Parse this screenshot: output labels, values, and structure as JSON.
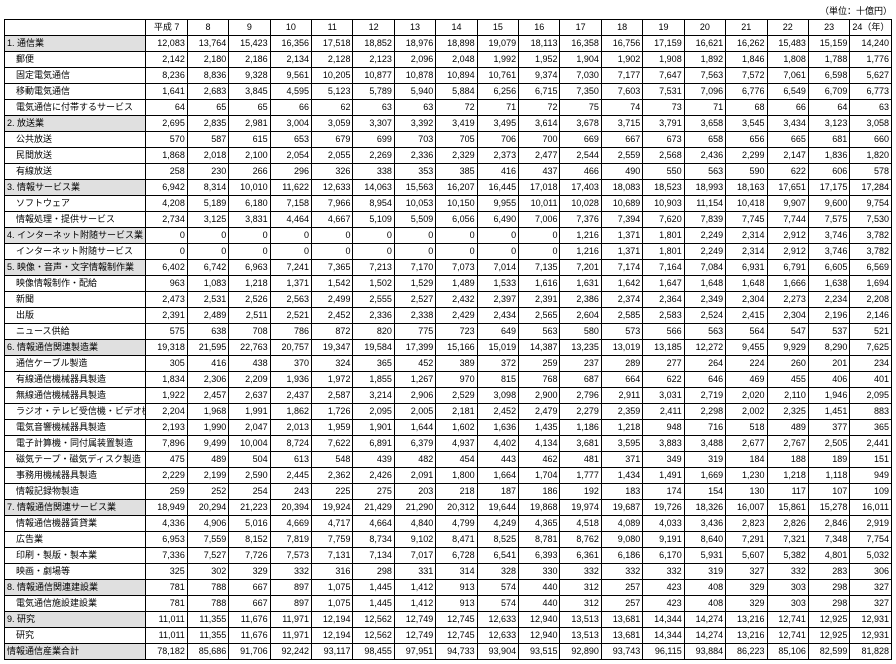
{
  "unit_label": "（単位：十億円）",
  "years": [
    "平成 7",
    "8",
    "9",
    "10",
    "11",
    "12",
    "13",
    "14",
    "15",
    "16",
    "17",
    "18",
    "19",
    "20",
    "21",
    "22",
    "23",
    "24（年）"
  ],
  "rows": [
    {
      "label": "1. 通信業",
      "section": true,
      "vals": [
        12083,
        13764,
        15423,
        16356,
        17518,
        18852,
        18976,
        18898,
        19079,
        18113,
        16358,
        16756,
        17159,
        16621,
        16262,
        15483,
        15159,
        14240
      ]
    },
    {
      "label": "　郵便",
      "vals": [
        2142,
        2180,
        2186,
        2134,
        2128,
        2123,
        2096,
        2048,
        1992,
        1952,
        1904,
        1902,
        1908,
        1892,
        1846,
        1808,
        1788,
        1776
      ]
    },
    {
      "label": "　固定電気通信",
      "vals": [
        8236,
        8836,
        9328,
        9561,
        10205,
        10877,
        10878,
        10894,
        10761,
        9374,
        7030,
        7177,
        7647,
        7563,
        7572,
        7061,
        6598,
        5627
      ]
    },
    {
      "label": "　移動電気通信",
      "vals": [
        1641,
        2683,
        3845,
        4595,
        5123,
        5789,
        5940,
        5884,
        6256,
        6715,
        7350,
        7603,
        7531,
        7096,
        6776,
        6549,
        6709,
        6773
      ]
    },
    {
      "label": "　電気通信に付帯するサービス",
      "vals": [
        64,
        65,
        65,
        66,
        62,
        63,
        63,
        72,
        71,
        72,
        75,
        74,
        73,
        71,
        68,
        66,
        64,
        63
      ]
    },
    {
      "label": "2. 放送業",
      "section": true,
      "vals": [
        2695,
        2835,
        2981,
        3004,
        3059,
        3307,
        3392,
        3419,
        3495,
        3614,
        3678,
        3715,
        3791,
        3658,
        3545,
        3434,
        3123,
        3058
      ]
    },
    {
      "label": "　公共放送",
      "vals": [
        570,
        587,
        615,
        653,
        679,
        699,
        703,
        705,
        706,
        700,
        669,
        667,
        673,
        658,
        656,
        665,
        681,
        660
      ]
    },
    {
      "label": "　民間放送",
      "vals": [
        1868,
        2018,
        2100,
        2054,
        2055,
        2269,
        2336,
        2329,
        2373,
        2477,
        2544,
        2559,
        2568,
        2436,
        2299,
        2147,
        1836,
        1820
      ]
    },
    {
      "label": "　有線放送",
      "vals": [
        258,
        230,
        266,
        296,
        326,
        338,
        353,
        385,
        416,
        437,
        466,
        490,
        550,
        563,
        590,
        622,
        606,
        578
      ]
    },
    {
      "label": "3. 情報サービス業",
      "section": true,
      "vals": [
        6942,
        8314,
        10010,
        11622,
        12633,
        14063,
        15563,
        16207,
        16445,
        17018,
        17403,
        18083,
        18523,
        18993,
        18163,
        17651,
        17175,
        17284
      ]
    },
    {
      "label": "　ソフトウェア",
      "vals": [
        4208,
        5189,
        6180,
        7158,
        7966,
        8954,
        10053,
        10150,
        9955,
        10011,
        10028,
        10689,
        10903,
        11154,
        10418,
        9907,
        9600,
        9754
      ]
    },
    {
      "label": "　情報処理・提供サービス",
      "vals": [
        2734,
        3125,
        3831,
        4464,
        4667,
        5109,
        5509,
        6056,
        6490,
        7006,
        7376,
        7394,
        7620,
        7839,
        7745,
        7744,
        7575,
        7530
      ]
    },
    {
      "label": "4. インターネット附随サービス業",
      "section": true,
      "vals": [
        0,
        0,
        0,
        0,
        0,
        0,
        0,
        0,
        0,
        0,
        1216,
        1371,
        1801,
        2249,
        2314,
        2912,
        3746,
        3782
      ]
    },
    {
      "label": "　インターネット附随サービス",
      "vals": [
        0,
        0,
        0,
        0,
        0,
        0,
        0,
        0,
        0,
        0,
        1216,
        1371,
        1801,
        2249,
        2314,
        2912,
        3746,
        3782
      ]
    },
    {
      "label": "5. 映像・音声・文字情報制作業",
      "section": true,
      "vals": [
        6402,
        6742,
        6963,
        7241,
        7365,
        7213,
        7170,
        7073,
        7014,
        7135,
        7201,
        7174,
        7164,
        7084,
        6931,
        6791,
        6605,
        6569
      ]
    },
    {
      "label": "　映像情報制作・配給",
      "vals": [
        963,
        1083,
        1218,
        1371,
        1542,
        1502,
        1529,
        1489,
        1533,
        1616,
        1631,
        1642,
        1647,
        1648,
        1648,
        1666,
        1638,
        1694
      ]
    },
    {
      "label": "　新聞",
      "vals": [
        2473,
        2531,
        2526,
        2563,
        2499,
        2555,
        2527,
        2432,
        2397,
        2391,
        2386,
        2374,
        2364,
        2349,
        2304,
        2273,
        2234,
        2208
      ]
    },
    {
      "label": "　出版",
      "vals": [
        2391,
        2489,
        2511,
        2521,
        2452,
        2336,
        2338,
        2429,
        2434,
        2565,
        2604,
        2585,
        2583,
        2524,
        2415,
        2304,
        2196,
        2146
      ]
    },
    {
      "label": "　ニュース供給",
      "vals": [
        575,
        638,
        708,
        786,
        872,
        820,
        775,
        723,
        649,
        563,
        580,
        573,
        566,
        563,
        564,
        547,
        537,
        521
      ]
    },
    {
      "label": "6. 情報通信関連製造業",
      "section": true,
      "vals": [
        19318,
        21595,
        22763,
        20757,
        19347,
        19584,
        17399,
        15166,
        15019,
        14387,
        13235,
        13019,
        13185,
        12272,
        9455,
        9929,
        8290,
        7625
      ]
    },
    {
      "label": "　通信ケーブル製造",
      "vals": [
        305,
        416,
        438,
        370,
        324,
        365,
        452,
        389,
        372,
        259,
        237,
        289,
        277,
        264,
        224,
        260,
        201,
        234
      ]
    },
    {
      "label": "　有線通信機械器具製造",
      "vals": [
        1834,
        2306,
        2209,
        1936,
        1972,
        1855,
        1267,
        970,
        815,
        768,
        687,
        664,
        622,
        646,
        469,
        455,
        406,
        401
      ]
    },
    {
      "label": "　無線通信機械器具製造",
      "vals": [
        1922,
        2457,
        2637,
        2437,
        2587,
        3214,
        2906,
        2529,
        3098,
        2900,
        2796,
        2911,
        3031,
        2719,
        2020,
        2110,
        1946,
        2095
      ]
    },
    {
      "label": "　ラジオ・テレビ受信機・ビデオ機器製造",
      "vals": [
        2204,
        1968,
        1991,
        1862,
        1726,
        2095,
        2005,
        2181,
        2452,
        2479,
        2279,
        2359,
        2411,
        2298,
        2002,
        2325,
        1451,
        883
      ]
    },
    {
      "label": "　電気音響機械器具製造",
      "vals": [
        2193,
        1990,
        2047,
        2013,
        1959,
        1901,
        1644,
        1602,
        1636,
        1435,
        1186,
        1218,
        948,
        716,
        518,
        489,
        377,
        365
      ]
    },
    {
      "label": "　電子計算機・同付属装置製造",
      "vals": [
        7896,
        9499,
        10004,
        8724,
        7622,
        6891,
        6379,
        4937,
        4402,
        4134,
        3681,
        3595,
        3883,
        3488,
        2677,
        2767,
        2505,
        2441
      ]
    },
    {
      "label": "　磁気テープ・磁気ディスク製造",
      "vals": [
        475,
        489,
        504,
        613,
        548,
        439,
        482,
        454,
        443,
        462,
        481,
        371,
        349,
        319,
        184,
        188,
        189,
        151
      ]
    },
    {
      "label": "　事務用機械器具製造",
      "vals": [
        2229,
        2199,
        2590,
        2445,
        2362,
        2426,
        2091,
        1800,
        1664,
        1704,
        1777,
        1434,
        1491,
        1669,
        1230,
        1218,
        1118,
        949
      ]
    },
    {
      "label": "　情報記録物製造",
      "vals": [
        259,
        252,
        254,
        243,
        225,
        275,
        203,
        218,
        187,
        186,
        192,
        183,
        174,
        154,
        130,
        117,
        107,
        109
      ]
    },
    {
      "label": "7. 情報通信関連サービス業",
      "section": true,
      "vals": [
        18949,
        20294,
        21223,
        20394,
        19924,
        21429,
        21290,
        20312,
        19644,
        19868,
        19974,
        19687,
        19726,
        18326,
        16007,
        15861,
        15278,
        16011
      ]
    },
    {
      "label": "　情報通信機器賃貸業",
      "vals": [
        4336,
        4906,
        5016,
        4669,
        4717,
        4664,
        4840,
        4799,
        4249,
        4365,
        4518,
        4089,
        4033,
        3436,
        2823,
        2826,
        2846,
        2919
      ]
    },
    {
      "label": "　広告業",
      "vals": [
        6953,
        7559,
        8152,
        7819,
        7759,
        8734,
        9102,
        8471,
        8525,
        8781,
        8762,
        9080,
        9191,
        8640,
        7291,
        7321,
        7348,
        7754
      ]
    },
    {
      "label": "　印刷・製版・製本業",
      "vals": [
        7336,
        7527,
        7726,
        7573,
        7131,
        7134,
        7017,
        6728,
        6541,
        6393,
        6361,
        6186,
        6170,
        5931,
        5607,
        5382,
        4801,
        5032
      ]
    },
    {
      "label": "　映画・劇場等",
      "vals": [
        325,
        302,
        329,
        332,
        316,
        298,
        331,
        314,
        328,
        330,
        332,
        332,
        332,
        319,
        327,
        332,
        283,
        306
      ]
    },
    {
      "label": "8. 情報通信関連建設業",
      "section": true,
      "vals": [
        781,
        788,
        667,
        897,
        1075,
        1445,
        1412,
        913,
        574,
        440,
        312,
        257,
        423,
        408,
        329,
        303,
        298,
        327
      ]
    },
    {
      "label": "　電気通信施設建設業",
      "vals": [
        781,
        788,
        667,
        897,
        1075,
        1445,
        1412,
        913,
        574,
        440,
        312,
        257,
        423,
        408,
        329,
        303,
        298,
        327
      ]
    },
    {
      "label": "9. 研究",
      "section": true,
      "vals": [
        11011,
        11355,
        11676,
        11971,
        12194,
        12562,
        12749,
        12745,
        12633,
        12940,
        13513,
        13681,
        14344,
        14274,
        13216,
        12741,
        12925,
        12931
      ]
    },
    {
      "label": "　研究",
      "vals": [
        11011,
        11355,
        11676,
        11971,
        12194,
        12562,
        12749,
        12745,
        12633,
        12940,
        13513,
        13681,
        14344,
        14274,
        13216,
        12741,
        12925,
        12931
      ]
    },
    {
      "label": "情報通信産業合計",
      "total": true,
      "vals": [
        78182,
        85686,
        91706,
        92242,
        93117,
        98455,
        97951,
        94733,
        93904,
        93515,
        92890,
        93743,
        96115,
        93884,
        86223,
        85106,
        82599,
        81828
      ]
    }
  ]
}
